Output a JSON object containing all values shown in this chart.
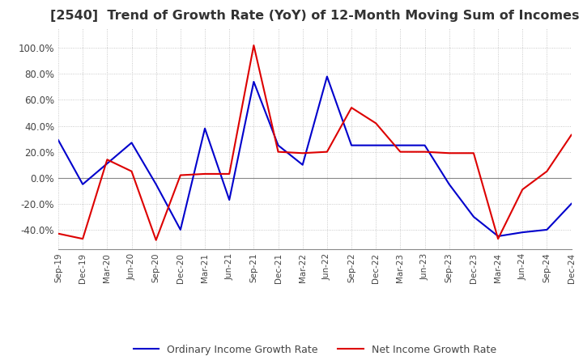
{
  "title": "[2540]  Trend of Growth Rate (YoY) of 12-Month Moving Sum of Incomes",
  "title_fontsize": 11.5,
  "ylim": [
    -55,
    115
  ],
  "yticks": [
    -40,
    -20,
    0,
    20,
    40,
    60,
    80,
    100
  ],
  "ytick_labels": [
    "-40.0%",
    "-20.0%",
    "0.0%",
    "20.0%",
    "40.0%",
    "60.0%",
    "80.0%",
    "100.0%"
  ],
  "background_color": "#ffffff",
  "grid_color": "#bbbbbb",
  "ordinary_color": "#0000cc",
  "net_color": "#dd0000",
  "legend_labels": [
    "Ordinary Income Growth Rate",
    "Net Income Growth Rate"
  ],
  "x_labels": [
    "Sep-19",
    "Dec-19",
    "Mar-20",
    "Jun-20",
    "Sep-20",
    "Dec-20",
    "Mar-21",
    "Jun-21",
    "Sep-21",
    "Dec-21",
    "Mar-22",
    "Jun-22",
    "Sep-22",
    "Dec-22",
    "Mar-23",
    "Jun-23",
    "Sep-23",
    "Dec-23",
    "Mar-24",
    "Jun-24",
    "Sep-24",
    "Dec-24"
  ],
  "ordinary_income": [
    29,
    -5,
    11,
    27,
    -5,
    -40,
    38,
    -17,
    74,
    25,
    10,
    78,
    25,
    25,
    25,
    25,
    -5,
    -30,
    -45,
    -42,
    -40,
    -20
  ],
  "net_income": [
    -43,
    -47,
    14,
    5,
    -48,
    2,
    3,
    3,
    102,
    20,
    19,
    20,
    54,
    42,
    20,
    20,
    19,
    19,
    -47,
    -9,
    5,
    33
  ]
}
